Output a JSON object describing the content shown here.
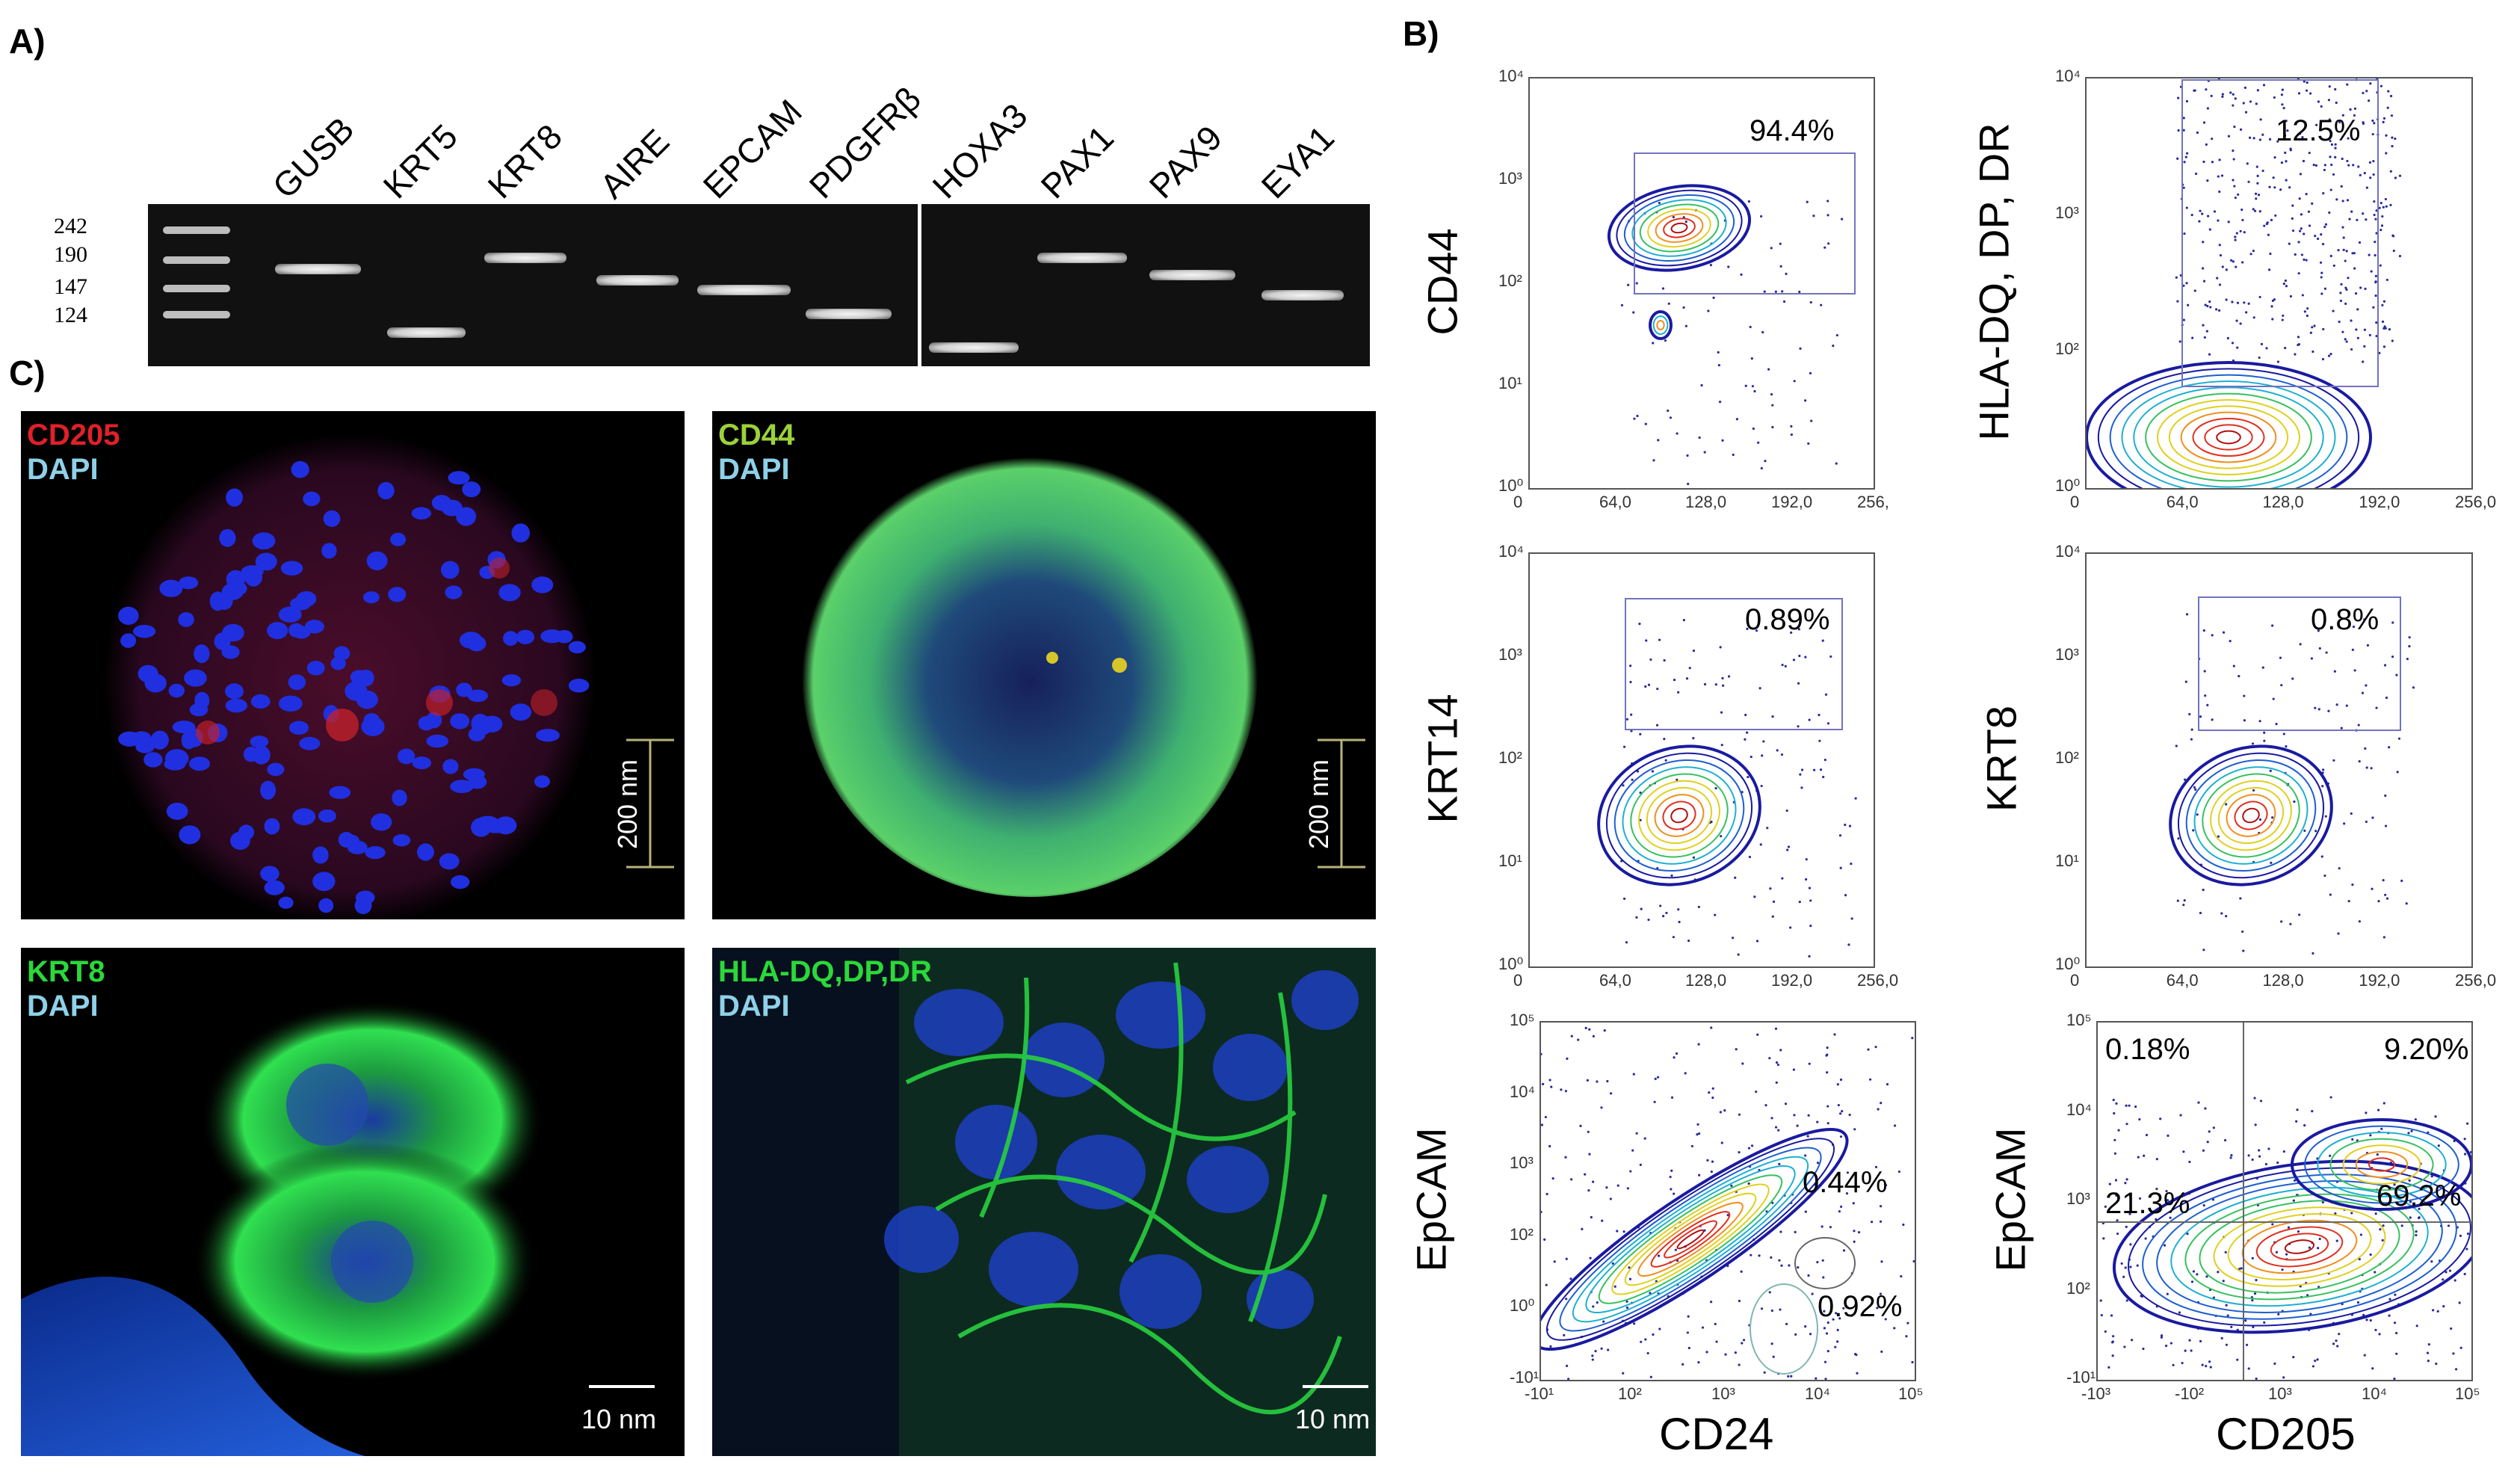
{
  "panels": {
    "a": "A)",
    "b": "B)",
    "c": "C)"
  },
  "gel": {
    "markers": [
      "242",
      "190",
      "147",
      "124"
    ],
    "lanes": [
      "GUSB",
      "KRT5",
      "KRT8",
      "AIRE",
      "EPCAM",
      "PDGFRβ",
      "HOXA3",
      "PAX1",
      "PAX9",
      "EYA1"
    ]
  },
  "micrographs": [
    {
      "stain": "CD205",
      "stain_color": "#e0202a",
      "counter": "DAPI",
      "scale": "200 nm"
    },
    {
      "stain": "CD44",
      "stain_color": "#9bd23a",
      "counter": "DAPI",
      "scale": "200 nm"
    },
    {
      "stain": "KRT8",
      "stain_color": "#2bd83a",
      "counter": "DAPI",
      "scale": "10 nm"
    },
    {
      "stain": "HLA-DQ,DP,DR",
      "stain_color": "#2bd83a",
      "counter": "DAPI",
      "scale": "10 nm"
    }
  ],
  "flow": {
    "linear_x_ticks": [
      "0",
      "64,0",
      "128,0",
      "192,0",
      "256,"
    ],
    "linear_x_ticks_full": [
      "0",
      "64,0",
      "128,0",
      "192,0",
      "256,0"
    ],
    "log_y_ticks": [
      "10⁴",
      "10³",
      "10²",
      "10¹",
      "10⁰"
    ],
    "hla_y_ticks": [
      "10⁴",
      "10³",
      "10²",
      "10⁰"
    ],
    "epcam_y_ticks": [
      "10⁵",
      "10⁴",
      "10³",
      "10²",
      "10⁰",
      "-10¹"
    ],
    "cd24_x_ticks": [
      "-10¹",
      "10²",
      "10³",
      "10⁴",
      "10⁵"
    ],
    "epcam_y_ticks_r": [
      "10⁵",
      "10⁴",
      "10³",
      "10²",
      "-10¹"
    ],
    "cd205_x_ticks": [
      "-10³",
      "-10²",
      "10³",
      "10⁴",
      "10⁵"
    ],
    "plots": [
      {
        "ylabel": "CD44",
        "xlabel": "",
        "gates": [
          "94.4%"
        ]
      },
      {
        "ylabel": "HLA-DQ, DP, DR",
        "xlabel": "",
        "gates": [
          "12.5%"
        ]
      },
      {
        "ylabel": "KRT14",
        "xlabel": "",
        "gates": [
          "0.89%"
        ]
      },
      {
        "ylabel": "KRT8",
        "xlabel": "",
        "gates": [
          "0.8%"
        ]
      },
      {
        "ylabel": "EpCAM",
        "xlabel": "CD24",
        "gates": [
          "0.44%",
          "0.92%"
        ]
      },
      {
        "ylabel": "EpCAM",
        "xlabel": "CD205",
        "gates": [
          "0.18%",
          "9.20%",
          "21.3%",
          "69.2%"
        ]
      }
    ]
  }
}
